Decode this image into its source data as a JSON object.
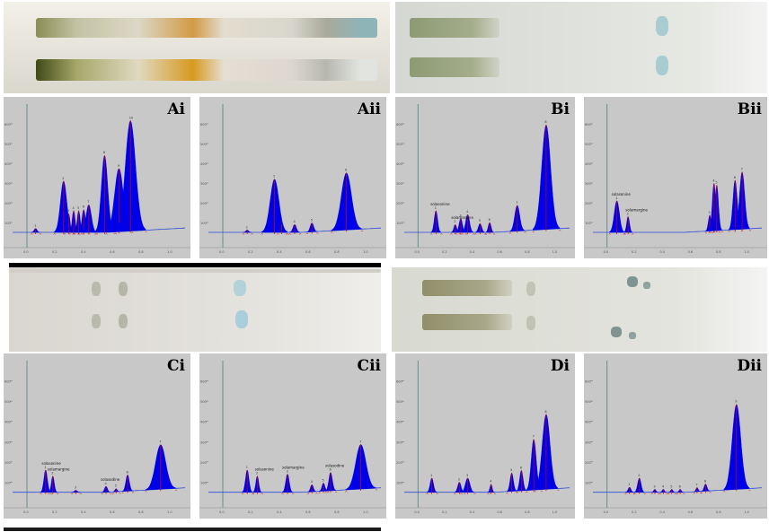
{
  "colors": {
    "peak": "#0000e8",
    "baseline": "#2a4ad8",
    "marker": "#d20000",
    "panel_bg": "#c8c8c8",
    "axis": "#6a8d8d"
  },
  "chart_data": [
    {
      "type": "area",
      "label": "Ai",
      "ylim": [
        0,
        700
      ],
      "xlim": [
        -0.1,
        1.1
      ],
      "yticks": [
        100,
        200,
        300,
        400,
        500,
        600
      ],
      "peaks": [
        {
          "x": 0.06,
          "h": 20,
          "w": 0.01
        },
        {
          "x": 0.255,
          "h": 260,
          "w": 0.022
        },
        {
          "x": 0.29,
          "h": 95,
          "w": 0.01
        },
        {
          "x": 0.325,
          "h": 110,
          "w": 0.01
        },
        {
          "x": 0.36,
          "h": 110,
          "w": 0.01
        },
        {
          "x": 0.395,
          "h": 115,
          "w": 0.012
        },
        {
          "x": 0.43,
          "h": 140,
          "w": 0.018
        },
        {
          "x": 0.54,
          "h": 390,
          "w": 0.022
        },
        {
          "x": 0.64,
          "h": 320,
          "w": 0.03
        },
        {
          "x": 0.72,
          "h": 560,
          "w": 0.035
        }
      ],
      "labels": []
    },
    {
      "type": "area",
      "label": "Aii",
      "ylim": [
        0,
        700
      ],
      "xlim": [
        -0.1,
        1.1
      ],
      "yticks": [
        100,
        200,
        300,
        400,
        500,
        600
      ],
      "peaks": [
        {
          "x": 0.17,
          "h": 12,
          "w": 0.01
        },
        {
          "x": 0.36,
          "h": 270,
          "w": 0.03
        },
        {
          "x": 0.41,
          "h": 40,
          "w": 0.01
        },
        {
          "x": 0.5,
          "h": 40,
          "w": 0.012
        },
        {
          "x": 0.62,
          "h": 45,
          "w": 0.012
        },
        {
          "x": 0.86,
          "h": 290,
          "w": 0.035
        }
      ],
      "labels": []
    },
    {
      "type": "area",
      "label": "Bi",
      "ylim": [
        0,
        700
      ],
      "xlim": [
        -0.1,
        1.1
      ],
      "yticks": [
        100,
        200,
        300,
        400,
        500,
        600
      ],
      "peaks": [
        {
          "x": 0.13,
          "h": 110,
          "w": 0.012
        },
        {
          "x": 0.27,
          "h": 40,
          "w": 0.01
        },
        {
          "x": 0.31,
          "h": 70,
          "w": 0.012
        },
        {
          "x": 0.36,
          "h": 90,
          "w": 0.014
        },
        {
          "x": 0.45,
          "h": 45,
          "w": 0.012
        },
        {
          "x": 0.52,
          "h": 50,
          "w": 0.01
        },
        {
          "x": 0.72,
          "h": 130,
          "w": 0.018
        },
        {
          "x": 0.93,
          "h": 530,
          "w": 0.032
        }
      ],
      "labels": [
        {
          "text": "solasonine",
          "x": 0.13
        },
        {
          "text": "solamargine",
          "x": 0.28
        }
      ]
    },
    {
      "type": "area",
      "label": "Bii",
      "ylim": [
        0,
        700
      ],
      "xlim": [
        -0.1,
        1.1
      ],
      "yticks": [
        100,
        200,
        300,
        400,
        500,
        600
      ],
      "peaks": [
        {
          "x": 0.07,
          "h": 160,
          "w": 0.018
        },
        {
          "x": 0.15,
          "h": 80,
          "w": 0.01
        },
        {
          "x": 0.73,
          "h": 80,
          "w": 0.01
        },
        {
          "x": 0.76,
          "h": 240,
          "w": 0.012
        },
        {
          "x": 0.78,
          "h": 230,
          "w": 0.012
        },
        {
          "x": 0.91,
          "h": 250,
          "w": 0.015
        },
        {
          "x": 0.96,
          "h": 290,
          "w": 0.018
        }
      ],
      "labels": [
        {
          "text": "solasonine",
          "x": 0.07
        },
        {
          "text": "solamargine",
          "x": 0.17
        }
      ]
    },
    {
      "type": "area",
      "label": "Ci",
      "ylim": [
        0,
        700
      ],
      "xlim": [
        -0.1,
        1.1
      ],
      "yticks": [
        100,
        200,
        300,
        400,
        500,
        600
      ],
      "peaks": [
        {
          "x": 0.13,
          "h": 110,
          "w": 0.012
        },
        {
          "x": 0.18,
          "h": 80,
          "w": 0.01
        },
        {
          "x": 0.34,
          "h": 10,
          "w": 0.01
        },
        {
          "x": 0.55,
          "h": 30,
          "w": 0.01
        },
        {
          "x": 0.62,
          "h": 15,
          "w": 0.008
        },
        {
          "x": 0.7,
          "h": 80,
          "w": 0.012
        },
        {
          "x": 0.93,
          "h": 220,
          "w": 0.035
        }
      ],
      "labels": [
        {
          "text": "solasonine",
          "x": 0.14
        },
        {
          "text": "solamargine",
          "x": 0.18
        },
        {
          "text": "solasodine",
          "x": 0.55
        }
      ]
    },
    {
      "type": "area",
      "label": "Cii",
      "ylim": [
        0,
        700
      ],
      "xlim": [
        -0.1,
        1.1
      ],
      "yticks": [
        100,
        200,
        300,
        400,
        500,
        600
      ],
      "peaks": [
        {
          "x": 0.17,
          "h": 110,
          "w": 0.012
        },
        {
          "x": 0.24,
          "h": 80,
          "w": 0.01
        },
        {
          "x": 0.45,
          "h": 90,
          "w": 0.012
        },
        {
          "x": 0.62,
          "h": 35,
          "w": 0.01
        },
        {
          "x": 0.7,
          "h": 40,
          "w": 0.01
        },
        {
          "x": 0.75,
          "h": 90,
          "w": 0.012
        },
        {
          "x": 0.96,
          "h": 220,
          "w": 0.035
        }
      ],
      "labels": [
        {
          "text": "solasonine",
          "x": 0.26
        },
        {
          "text": "solamargine",
          "x": 0.45
        },
        {
          "text": "solasodine",
          "x": 0.75
        }
      ]
    },
    {
      "type": "area",
      "label": "Di",
      "ylim": [
        0,
        700
      ],
      "xlim": [
        -0.1,
        1.1
      ],
      "yticks": [
        100,
        200,
        300,
        400,
        500,
        600
      ],
      "peaks": [
        {
          "x": 0.1,
          "h": 70,
          "w": 0.012
        },
        {
          "x": 0.3,
          "h": 50,
          "w": 0.012
        },
        {
          "x": 0.36,
          "h": 70,
          "w": 0.016
        },
        {
          "x": 0.53,
          "h": 40,
          "w": 0.008
        },
        {
          "x": 0.68,
          "h": 90,
          "w": 0.012
        },
        {
          "x": 0.75,
          "h": 100,
          "w": 0.012
        },
        {
          "x": 0.84,
          "h": 250,
          "w": 0.018
        },
        {
          "x": 0.93,
          "h": 370,
          "w": 0.028
        }
      ],
      "labels": []
    },
    {
      "type": "area",
      "label": "Dii",
      "ylim": [
        0,
        700
      ],
      "xlim": [
        -0.1,
        1.1
      ],
      "yticks": [
        100,
        200,
        300,
        400,
        500,
        600
      ],
      "peaks": [
        {
          "x": 0.16,
          "h": 25,
          "w": 0.01
        },
        {
          "x": 0.23,
          "h": 70,
          "w": 0.012
        },
        {
          "x": 0.34,
          "h": 15,
          "w": 0.008
        },
        {
          "x": 0.4,
          "h": 15,
          "w": 0.008
        },
        {
          "x": 0.46,
          "h": 15,
          "w": 0.008
        },
        {
          "x": 0.52,
          "h": 15,
          "w": 0.008
        },
        {
          "x": 0.64,
          "h": 20,
          "w": 0.008
        },
        {
          "x": 0.7,
          "h": 35,
          "w": 0.01
        },
        {
          "x": 0.92,
          "h": 420,
          "w": 0.03
        }
      ],
      "labels": []
    }
  ]
}
